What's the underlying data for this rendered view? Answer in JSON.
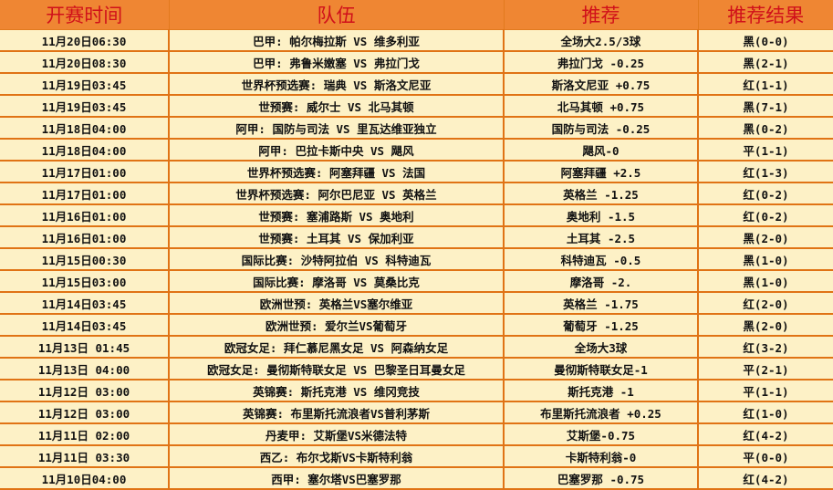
{
  "colors": {
    "header_bg": "#ef8633",
    "header_text": "#d0101a",
    "row_bg": "#fdf1c6",
    "border": "#e07315"
  },
  "headers": [
    "开赛时间",
    "队伍",
    "推荐",
    "推荐结果"
  ],
  "rows": [
    {
      "time": "11月20日06:30",
      "match": "巴甲: 帕尔梅拉斯 VS 维多利亚",
      "pick": "全场大2.5/3球",
      "result": "黑(0-0)"
    },
    {
      "time": "11月20日08:30",
      "match": "巴甲: 弗鲁米嫩塞 VS 弗拉门戈",
      "pick": "弗拉门戈 -0.25",
      "result": "黑(2-1)"
    },
    {
      "time": "11月19日03:45",
      "match": "世界杯预选赛: 瑞典 VS 斯洛文尼亚",
      "pick": "斯洛文尼亚 +0.75",
      "result": "红(1-1)"
    },
    {
      "time": "11月19日03:45",
      "match": "世预赛: 威尔士 VS 北马其顿",
      "pick": "北马其顿 +0.75",
      "result": "黑(7-1)"
    },
    {
      "time": "11月18日04:00",
      "match": "阿甲: 国防与司法 VS 里瓦达维亚独立",
      "pick": "国防与司法 -0.25",
      "result": "黑(0-2)"
    },
    {
      "time": "11月18日04:00",
      "match": "阿甲: 巴拉卡斯中央 VS 飓风",
      "pick": "飓风-0",
      "result": "平(1-1)"
    },
    {
      "time": "11月17日01:00",
      "match": "世界杯预选赛: 阿塞拜疆 VS 法国",
      "pick": "阿塞拜疆 +2.5",
      "result": "红(1-3)"
    },
    {
      "time": "11月17日01:00",
      "match": "世界杯预选赛: 阿尔巴尼亚 VS 英格兰",
      "pick": "英格兰 -1.25",
      "result": "红(0-2)"
    },
    {
      "time": "11月16日01:00",
      "match": "世预赛: 塞浦路斯 VS 奥地利",
      "pick": "奥地利 -1.5",
      "result": "红(0-2)"
    },
    {
      "time": "11月16日01:00",
      "match": "世预赛: 土耳其 VS 保加利亚",
      "pick": "土耳其 -2.5",
      "result": "黑(2-0)"
    },
    {
      "time": "11月15日00:30",
      "match": "国际比赛: 沙特阿拉伯 VS 科特迪瓦",
      "pick": "科特迪瓦 -0.5",
      "result": "黑(1-0)"
    },
    {
      "time": "11月15日03:00",
      "match": "国际比赛: 摩洛哥 VS 莫桑比克",
      "pick": "摩洛哥 -2.",
      "result": "黑(1-0)"
    },
    {
      "time": "11月14日03:45",
      "match": "欧洲世预: 英格兰VS塞尔维亚",
      "pick": "英格兰 -1.75",
      "result": "红(2-0)"
    },
    {
      "time": "11月14日03:45",
      "match": "欧洲世预: 爱尔兰VS葡萄牙",
      "pick": "葡萄牙 -1.25",
      "result": "黑(2-0)"
    },
    {
      "time": "11月13日 01:45",
      "match": "欧冠女足: 拜仁慕尼黑女足 VS 阿森纳女足",
      "pick": "全场大3球",
      "result": "红(3-2)"
    },
    {
      "time": "11月13日 04:00",
      "match": "欧冠女足: 曼彻斯特联女足 VS 巴黎圣日耳曼女足",
      "pick": "曼彻斯特联女足-1",
      "result": "平(2-1)"
    },
    {
      "time": "11月12日 03:00",
      "match": "英锦赛: 斯托克港 VS 维冈竞技",
      "pick": "斯托克港 -1",
      "result": "平(1-1)"
    },
    {
      "time": "11月12日 03:00",
      "match": "英锦赛: 布里斯托流浪者VS普利茅斯",
      "pick": "布里斯托流浪者 +0.25",
      "result": "红(1-0)"
    },
    {
      "time": "11月11日 02:00",
      "match": "丹麦甲: 艾斯堡VS米德法特",
      "pick": "艾斯堡-0.75",
      "result": "红(4-2)"
    },
    {
      "time": "11月11日 03:30",
      "match": "西乙: 布尔戈斯VS卡斯特利翁",
      "pick": "卡斯特利翁-0",
      "result": "平(0-0)"
    },
    {
      "time": "11月10日04:00",
      "match": "西甲: 塞尔塔VS巴塞罗那",
      "pick": "巴塞罗那 -0.75",
      "result": "红(4-2)"
    }
  ]
}
